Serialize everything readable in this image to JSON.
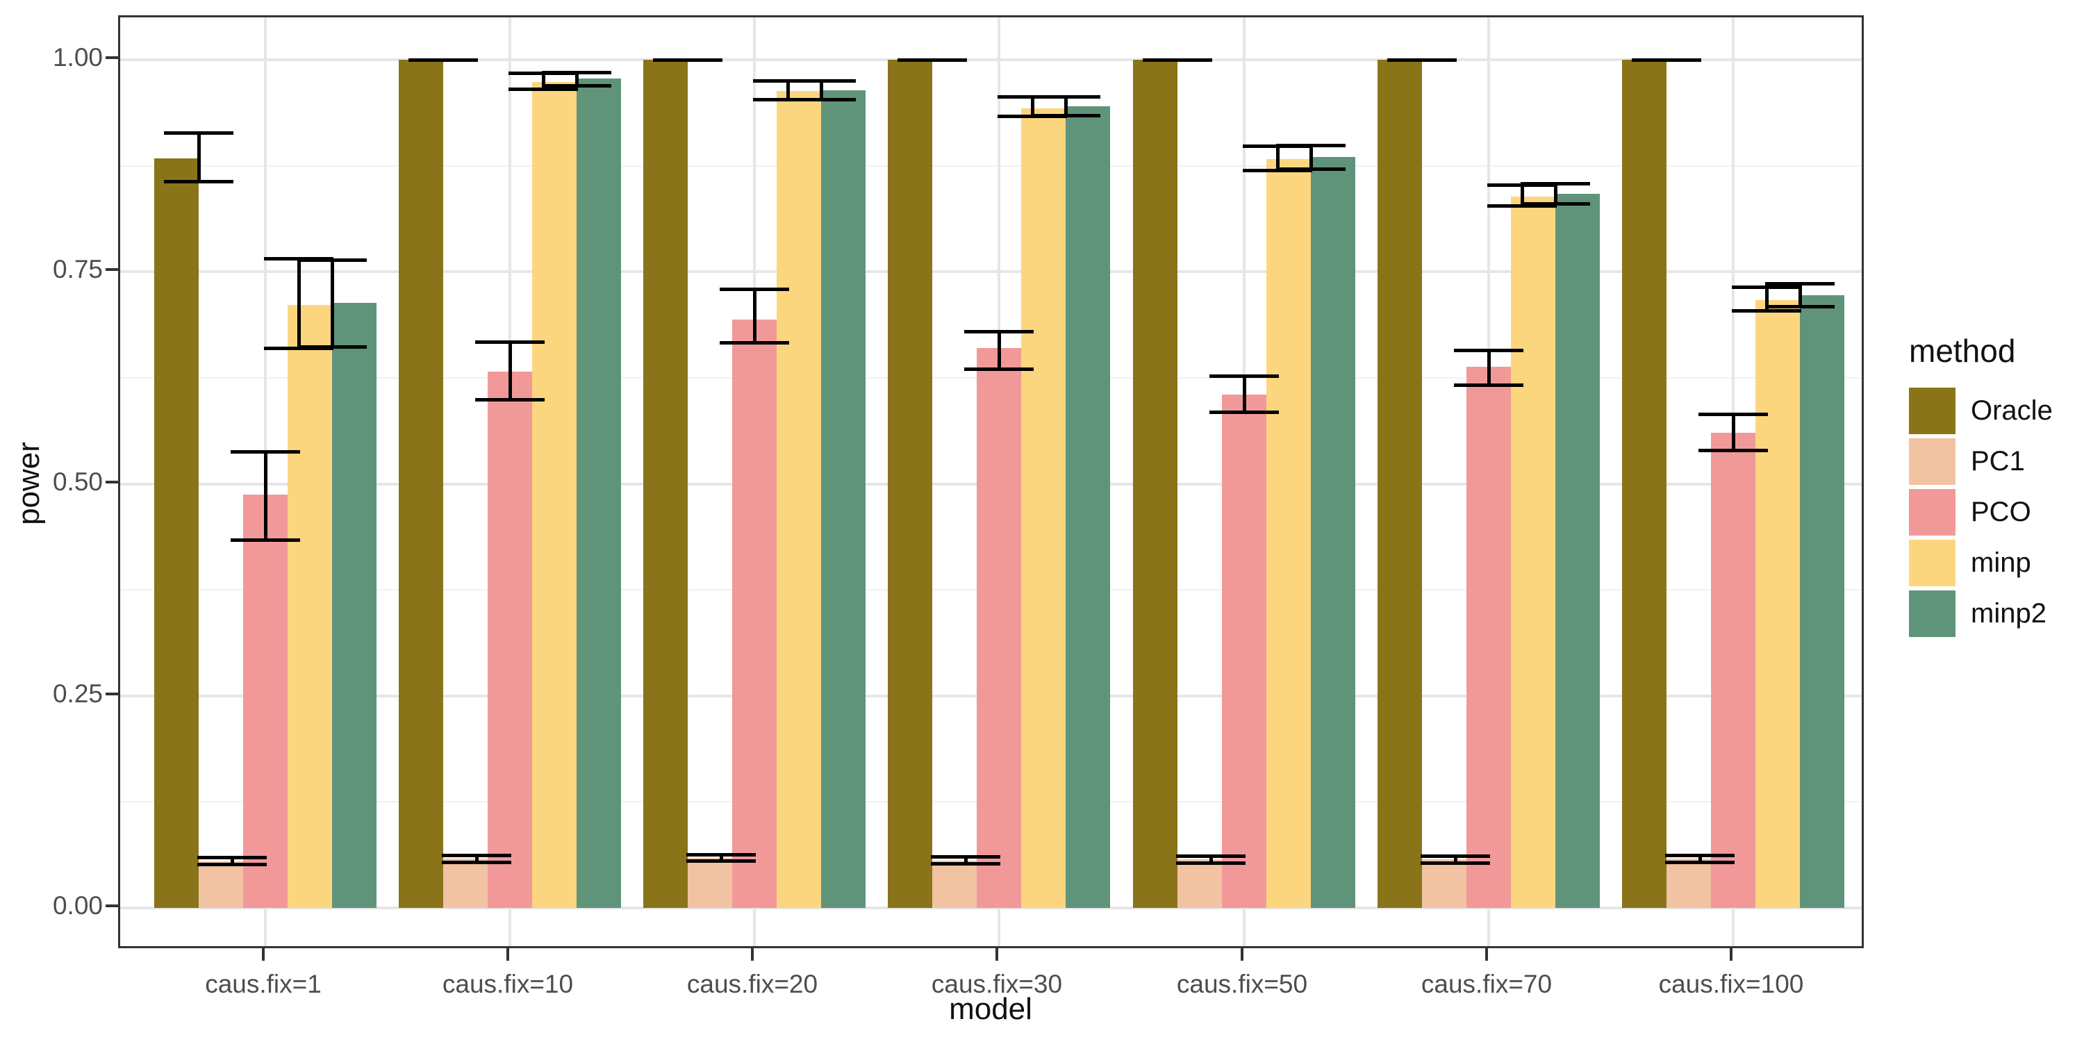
{
  "figure": {
    "background": "#ffffff",
    "text_color": "#111111",
    "tick_label_color": "#4d4d4d",
    "gridline_color": "#e6e6e6",
    "panel_border_color": "#333333",
    "errorbar_color": "#000000"
  },
  "chart_data": {
    "type": "bar",
    "title": "",
    "xlabel": "model",
    "ylabel": "power",
    "legend_title": "method",
    "legend_position": "right",
    "grid": "on",
    "ylim": [
      0,
      1
    ],
    "yticks": [
      {
        "label": "0.00",
        "v": 0.0
      },
      {
        "label": "0.25",
        "v": 0.25
      },
      {
        "label": "0.50",
        "v": 0.5
      },
      {
        "label": "0.75",
        "v": 0.75
      },
      {
        "label": "1.00",
        "v": 1.0
      }
    ],
    "minor_gridlines": [
      0.125,
      0.375,
      0.625,
      0.875
    ],
    "categories": [
      "caus.fix=1",
      "caus.fix=10",
      "caus.fix=20",
      "caus.fix=30",
      "caus.fix=50",
      "caus.fix=70",
      "caus.fix=100"
    ],
    "series": [
      {
        "name": "Oracle",
        "color": "#897419",
        "values": [
          0.884,
          1.0,
          1.0,
          1.0,
          1.0,
          1.0,
          1.0
        ],
        "err_lo": [
          0.856,
          1.0,
          1.0,
          1.0,
          1.0,
          1.0,
          1.0
        ],
        "err_hi": [
          0.914,
          1.0,
          1.0,
          1.0,
          1.0,
          1.0,
          1.0
        ]
      },
      {
        "name": "PC1",
        "color": "#f1c3a3",
        "values": [
          0.055,
          0.058,
          0.059,
          0.056,
          0.057,
          0.057,
          0.058
        ],
        "err_lo": [
          0.051,
          0.054,
          0.055,
          0.052,
          0.053,
          0.053,
          0.054
        ],
        "err_hi": [
          0.059,
          0.062,
          0.063,
          0.06,
          0.061,
          0.061,
          0.062
        ]
      },
      {
        "name": "PCO",
        "color": "#f19999",
        "values": [
          0.487,
          0.632,
          0.694,
          0.66,
          0.605,
          0.638,
          0.56
        ],
        "err_lo": [
          0.434,
          0.599,
          0.666,
          0.635,
          0.584,
          0.616,
          0.539
        ],
        "err_hi": [
          0.538,
          0.667,
          0.729,
          0.679,
          0.627,
          0.657,
          0.582
        ]
      },
      {
        "name": "minp",
        "color": "#fcd67f",
        "values": [
          0.711,
          0.974,
          0.963,
          0.943,
          0.883,
          0.839,
          0.717
        ],
        "err_lo": [
          0.66,
          0.965,
          0.953,
          0.933,
          0.869,
          0.828,
          0.704
        ],
        "err_hi": [
          0.765,
          0.984,
          0.975,
          0.956,
          0.898,
          0.852,
          0.732
        ]
      },
      {
        "name": "minp2",
        "color": "#5f947b",
        "values": [
          0.713,
          0.978,
          0.964,
          0.945,
          0.885,
          0.842,
          0.722
        ],
        "err_lo": [
          0.661,
          0.969,
          0.953,
          0.934,
          0.871,
          0.83,
          0.709
        ],
        "err_hi": [
          0.764,
          0.985,
          0.975,
          0.956,
          0.899,
          0.854,
          0.736
        ]
      }
    ]
  }
}
